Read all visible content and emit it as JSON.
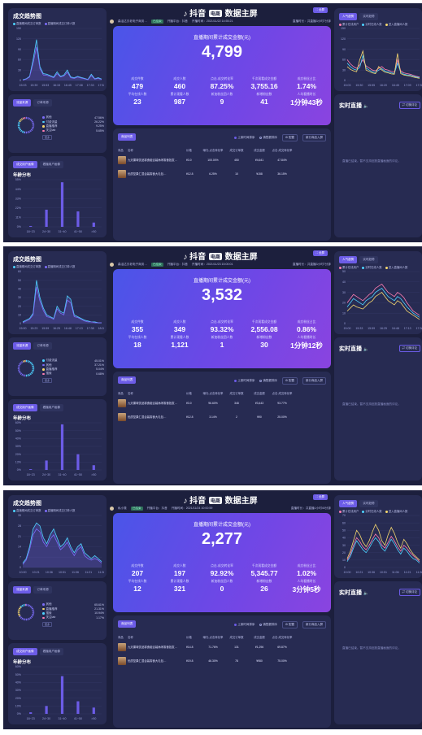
{
  "common": {
    "trend_title": "成交趋势图",
    "trend_legend": [
      "直播期间成交订单数",
      "直播期间成交订单人数"
    ],
    "src_tabs": [
      "流量来源",
      "订单来源"
    ],
    "more_label": "更多",
    "user_tabs": [
      "成交用户画像",
      "看播用户画像"
    ],
    "age_title": "年龄分布",
    "age_categories": [
      "18~23",
      "24~30",
      "31~40",
      "41~50",
      ">50"
    ],
    "brand": "抖音",
    "brand_badge": "电商",
    "brand_suffix": "数据主屏",
    "full_btn": "全屏",
    "gmv_label": "直播期间累计成交金额(元)",
    "kpi_labels": [
      "成交件数",
      "成交人数",
      "点击-成交转化率",
      "千次观看成交金额",
      "成交粉丝占比",
      "平均在线人数",
      "累计观看人数",
      "新加粉丝团人数",
      "新增粉丝数",
      "人均看播时长"
    ],
    "goods_tab": "商品列表",
    "sort_options": [
      "上架时间排序",
      "销售额排序"
    ],
    "goods_btns": [
      "配置",
      "新分商品入屏"
    ],
    "goods_headers": [
      "商品",
      "名称",
      "价格",
      "曝光-点击转化率",
      "成交订单数",
      "成交金额",
      "点击-成交转化率"
    ],
    "right_tabs": [
      "人气趋势",
      "实时趋势"
    ],
    "right_legend": [
      "累计在线用户",
      "实时在线人数",
      "进入直播间人数"
    ],
    "live_title": "实时直播",
    "switch_btn": "切换评论",
    "no_data": "直播已结束。暂不支持回放直播画面的评论。",
    "platform_prefix": "开播平台：",
    "time_prefix": "开播时间：",
    "dur_prefix": "直播时长："
  },
  "screens": [
    {
      "anchor": "森活达贝老电子商务…",
      "live_tag": "已结束",
      "platform": "抖音",
      "start_time": "2021/11/22 14:55:21",
      "duration": "共直播3小时7分钟",
      "trend_y_ticks": [
        "150",
        "120",
        "90",
        "60",
        "30",
        "0"
      ],
      "trend_x_ticks": [
        "15:03",
        "15:39",
        "15:53",
        "16:15",
        "16:45",
        "17:08",
        "17:33",
        "17:52"
      ],
      "trend_series_a": [
        2,
        5,
        12,
        60,
        118,
        40,
        20,
        18,
        14,
        10,
        25,
        12,
        16,
        30,
        10,
        8,
        12,
        9,
        6,
        3,
        18,
        5,
        8,
        4
      ],
      "trend_series_b": [
        1,
        4,
        10,
        50,
        96,
        34,
        16,
        15,
        12,
        8,
        20,
        10,
        13,
        24,
        8,
        6,
        10,
        7,
        5,
        2,
        14,
        4,
        6,
        3
      ],
      "sources": [
        {
          "name": "其他",
          "pct": "47.56%",
          "color": "#7b6cf6"
        },
        {
          "name": "付费流量",
          "pct": "26.22%",
          "color": "#4dd2ff"
        },
        {
          "name": "直播推荐",
          "pct": "9.25%",
          "color": "#f5d76e"
        },
        {
          "name": "关注tab",
          "pct": "5.65%",
          "color": "#ff7eb3"
        }
      ],
      "age_y_ticks": [
        "55%",
        "44%",
        "33%",
        "22%",
        "11%",
        "0%"
      ],
      "age_values": [
        1,
        20,
        52,
        18,
        5
      ],
      "gmv": "4,799",
      "kpi_values": [
        "479",
        "460",
        "87.25%",
        "3,755.16",
        "1.74%",
        "23",
        "987",
        "9",
        "41",
        "1分钟43秒"
      ],
      "goods": [
        {
          "name": "九天果味饮品零食组合装休闲零食批发…",
          "price": "¥3.0",
          "ctr": "100.00%",
          "orders": "450",
          "amount": "¥4,641",
          "cvr": "47.84%"
        },
        {
          "name": "优质坚果仁混合装零食大礼包…",
          "price": "¥12.8",
          "ctr": "6.25%",
          "orders": "10",
          "amount": "¥158",
          "cvr": "36.15%"
        }
      ],
      "right_y_ticks": [
        "150",
        "120",
        "90",
        "60",
        "30",
        "0"
      ],
      "right_x_ticks": [
        "15:03",
        "15:30",
        "15:55",
        "16:20",
        "16:45",
        "17:09",
        "17:35"
      ],
      "right_series": [
        [
          60,
          48,
          40,
          35,
          45,
          60,
          42,
          36,
          30,
          28,
          35,
          40,
          32,
          30,
          26,
          24,
          60,
          28,
          22,
          20,
          18,
          15,
          12,
          10
        ],
        [
          50,
          40,
          33,
          30,
          38,
          72,
          36,
          30,
          25,
          23,
          30,
          34,
          27,
          25,
          22,
          20,
          50,
          24,
          18,
          16,
          15,
          12,
          10,
          8
        ],
        [
          40,
          32,
          28,
          25,
          60,
          85,
          30,
          26,
          22,
          20,
          40,
          30,
          24,
          22,
          19,
          18,
          78,
          20,
          16,
          14,
          13,
          10,
          8,
          6
        ]
      ]
    },
    {
      "anchor": "森活达贝老电子商务…",
      "live_tag": "已结束",
      "platform": "抖音",
      "start_time": "2021/11/23 15:00:01",
      "duration": "共直播3小时7分钟",
      "trend_y_ticks": [
        "60",
        "50",
        "40",
        "30",
        "20",
        "10",
        "0"
      ],
      "trend_x_ticks": [
        "15:00",
        "15:23",
        "15:59",
        "16:25",
        "16:48",
        "17:13",
        "17:38",
        "18:02"
      ],
      "trend_series_a": [
        2,
        4,
        6,
        12,
        50,
        30,
        18,
        10,
        8,
        6,
        20,
        14,
        12,
        32,
        28,
        10,
        8,
        6,
        4,
        3,
        2,
        2,
        1,
        1
      ],
      "trend_series_b": [
        1,
        3,
        5,
        10,
        42,
        26,
        15,
        8,
        7,
        5,
        17,
        12,
        10,
        27,
        24,
        8,
        7,
        5,
        3,
        2,
        2,
        1,
        1,
        1
      ],
      "sources": [
        {
          "name": "付费流量",
          "pct": "45.01%",
          "color": "#4dd2ff"
        },
        {
          "name": "其他",
          "pct": "37.21%",
          "color": "#7b6cf6"
        },
        {
          "name": "直播推荐",
          "pct": "5.04%",
          "color": "#f5d76e"
        },
        {
          "name": "搜索",
          "pct": "0.68%",
          "color": "#ff7eb3"
        }
      ],
      "age_y_ticks": [
        "60%",
        "50%",
        "40%",
        "30%",
        "20%",
        "13%",
        "0%"
      ],
      "age_values": [
        1,
        12,
        58,
        20,
        6
      ],
      "gmv": "3,532",
      "kpi_values": [
        "355",
        "349",
        "93.32%",
        "2,556.08",
        "0.86%",
        "18",
        "1,121",
        "1",
        "30",
        "1分钟12秒"
      ],
      "goods": [
        {
          "name": "九天果味饮品零食组合装休闲零食批发…",
          "price": "¥3.0",
          "ctr": "96.60%",
          "orders": "348",
          "amount": "¥3,443",
          "cvr": "93.77%"
        },
        {
          "name": "优质坚果仁混合装零食大礼包…",
          "price": "¥12.8",
          "ctr": "3.14%",
          "orders": "2",
          "amount": "¥90",
          "cvr": "25.00%"
        }
      ],
      "right_y_ticks": [
        "50",
        "40",
        "30",
        "20",
        "10",
        "0"
      ],
      "right_x_ticks": [
        "15:00",
        "15:33",
        "15:59",
        "16:25",
        "16:48",
        "17:13",
        "17:38"
      ],
      "right_series": [
        [
          20,
          24,
          28,
          26,
          24,
          22,
          25,
          28,
          30,
          34,
          36,
          38,
          34,
          30,
          28,
          26,
          30,
          28,
          25,
          20,
          16,
          12,
          10,
          8
        ],
        [
          16,
          20,
          24,
          22,
          20,
          18,
          22,
          24,
          26,
          30,
          32,
          34,
          30,
          26,
          24,
          22,
          26,
          24,
          20,
          16,
          13,
          10,
          8,
          6
        ],
        [
          12,
          15,
          18,
          16,
          15,
          14,
          17,
          20,
          22,
          26,
          28,
          30,
          26,
          22,
          20,
          18,
          22,
          20,
          16,
          12,
          10,
          8,
          6,
          4
        ]
      ]
    },
    {
      "anchor": "私小笺",
      "live_tag": "已结束",
      "platform": "抖音",
      "start_time": "2021/11/24 10:00:59",
      "duration": "共直播1小时40分钟",
      "trend_y_ticks": [
        "35",
        "28",
        "21",
        "14",
        "7",
        "0"
      ],
      "trend_x_ticks": [
        "10:00",
        "10:21",
        "10:36",
        "10:51",
        "11:06",
        "11:21",
        "11:36"
      ],
      "trend_series_a": [
        3,
        6,
        14,
        26,
        30,
        28,
        20,
        16,
        22,
        26,
        20,
        14,
        16,
        20,
        14,
        10,
        14,
        16,
        10,
        8,
        6,
        8,
        6,
        4
      ],
      "trend_series_b": [
        2,
        5,
        12,
        22,
        26,
        24,
        17,
        14,
        19,
        22,
        17,
        12,
        14,
        17,
        12,
        8,
        12,
        14,
        8,
        6,
        5,
        6,
        5,
        3
      ],
      "sources": [
        {
          "name": "其他",
          "pct": "65.61%",
          "color": "#7b6cf6"
        },
        {
          "name": "直播推荐",
          "pct": "21.31%",
          "color": "#f5d76e"
        },
        {
          "name": "搜索",
          "pct": "10.94%",
          "color": "#4dd2ff"
        },
        {
          "name": "关注tab",
          "pct": "1.17%",
          "color": "#ff7eb3"
        }
      ],
      "age_y_ticks": [
        "60%",
        "50%",
        "40%",
        "30%",
        "20%",
        "10%",
        "0%"
      ],
      "age_values": [
        2,
        10,
        48,
        16,
        8
      ],
      "gmv": "2,277",
      "kpi_values": [
        "207",
        "197",
        "92.92%",
        "5,345.77",
        "1.02%",
        "12",
        "321",
        "0",
        "26",
        "3分钟5秒"
      ],
      "goods": [
        {
          "name": "九天果味饮品零食组合装休闲零食批发…",
          "price": "¥14.8",
          "ctr": "71.76%",
          "orders": "131",
          "amount": "¥1,296",
          "cvr": "69.87%"
        },
        {
          "name": "优质坚果仁混合装零食大礼包…",
          "price": "¥19.8",
          "ctr": "46.30%",
          "orders": "78",
          "amount": "¥980",
          "cvr": "75.00%"
        }
      ],
      "right_y_ticks": [
        "70",
        "60",
        "50",
        "40",
        "30",
        "20",
        "10",
        "0"
      ],
      "right_x_ticks": [
        "10:00",
        "10:21",
        "10:36",
        "10:51",
        "11:06",
        "11:21",
        "11:36"
      ],
      "right_series": [
        [
          10,
          18,
          30,
          40,
          35,
          28,
          24,
          30,
          38,
          45,
          40,
          30,
          26,
          34,
          42,
          36,
          28,
          22,
          30,
          26,
          20,
          16,
          12,
          8
        ],
        [
          8,
          15,
          26,
          36,
          30,
          24,
          20,
          26,
          34,
          40,
          35,
          26,
          22,
          30,
          38,
          32,
          24,
          18,
          26,
          22,
          16,
          12,
          10,
          6
        ],
        [
          12,
          22,
          36,
          50,
          44,
          34,
          28,
          36,
          48,
          58,
          50,
          36,
          30,
          44,
          54,
          46,
          34,
          26,
          38,
          32,
          24,
          18,
          14,
          10
        ]
      ]
    }
  ]
}
